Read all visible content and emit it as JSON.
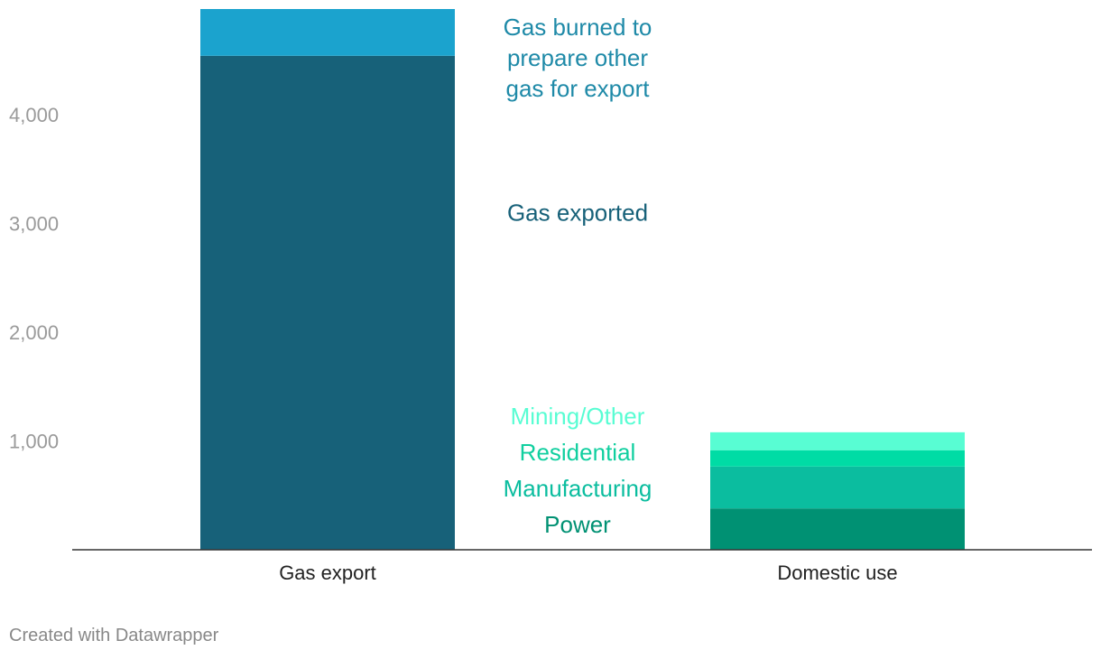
{
  "chart_data": {
    "type": "bar",
    "stacked": true,
    "title": "",
    "xlabel": "",
    "ylabel": "",
    "ylim": [
      0,
      4970
    ],
    "yticks": [
      1000,
      2000,
      3000,
      4000
    ],
    "ytick_labels": [
      "1,000",
      "2,000",
      "3,000",
      "4,000"
    ],
    "grid": false,
    "categories": [
      "Gas export",
      "Domestic use"
    ],
    "series": [
      {
        "name": "Power",
        "values": [
          0,
          380
        ],
        "color": "#009173"
      },
      {
        "name": "Manufacturing",
        "values": [
          0,
          385
        ],
        "color": "#0bbd9f"
      },
      {
        "name": "Residential",
        "values": [
          0,
          150
        ],
        "color": "#00dca5"
      },
      {
        "name": "Mining/Other",
        "values": [
          0,
          165
        ],
        "color": "#58fdd3"
      },
      {
        "name": "Gas exported",
        "values": [
          4540,
          0
        ],
        "color": "#176179"
      },
      {
        "name": "Gas burned to prepare other gas for export",
        "values": [
          430,
          0
        ],
        "color": "#1ba3ce"
      }
    ],
    "annotations": [
      {
        "series": "Gas burned to prepare other gas for export",
        "lines": [
          "Gas burned to",
          "prepare other",
          "gas for export"
        ],
        "color": "#1f8aa8"
      },
      {
        "series": "Gas exported",
        "lines": [
          "Gas exported"
        ],
        "color": "#176179"
      },
      {
        "series": "Mining/Other",
        "lines": [
          "Mining/Other"
        ],
        "color": "#58fdd3"
      },
      {
        "series": "Residential",
        "lines": [
          "Residential"
        ],
        "color": "#10cf9f"
      },
      {
        "series": "Manufacturing",
        "lines": [
          "Manufacturing"
        ],
        "color": "#0bbd9f"
      },
      {
        "series": "Power",
        "lines": [
          "Power"
        ],
        "color": "#009173"
      }
    ]
  },
  "footer": {
    "credit": "Created with Datawrapper"
  }
}
